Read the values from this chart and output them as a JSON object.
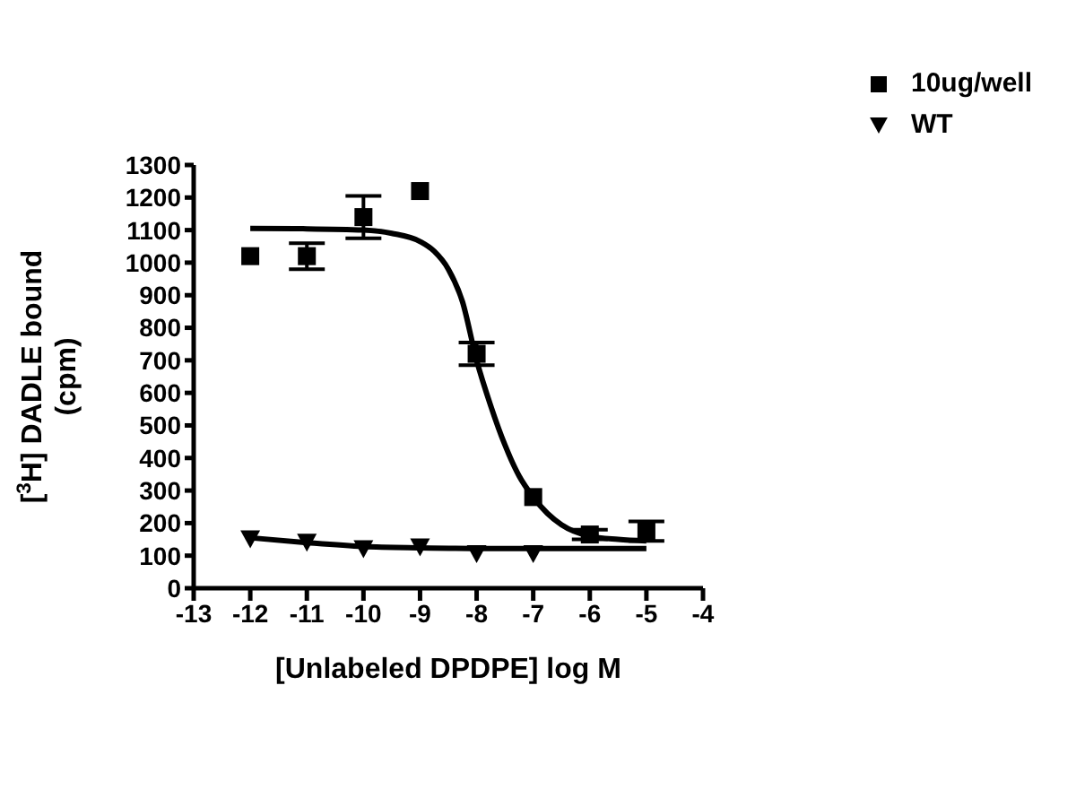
{
  "chart_data": {
    "type": "scatter",
    "xlabel": "[Unlabeled DPDPE] log M",
    "ylabel": "[$^{3}$H] DADLE bound\n(cpm)",
    "xlim": [
      -13,
      -4
    ],
    "xticks": [
      -13,
      -12,
      -11,
      -10,
      -9,
      -8,
      -7,
      -6,
      -5,
      -4
    ],
    "ylim": [
      0,
      1300
    ],
    "yticks": [
      0,
      100,
      200,
      300,
      400,
      500,
      600,
      700,
      800,
      900,
      1000,
      1100,
      1200,
      1300
    ],
    "legend": "top right",
    "series": [
      {
        "name": "10ug/well",
        "marker": "square",
        "color": "#000000",
        "x": [
          -12,
          -11,
          -10,
          -9,
          -8,
          -7,
          -6,
          -5
        ],
        "values": [
          1020,
          1020,
          1140,
          1220,
          720,
          280,
          165,
          175
        ],
        "errors": [
          null,
          40,
          65,
          null,
          35,
          null,
          15,
          30
        ]
      },
      {
        "name": "WT",
        "marker": "triangle",
        "color": "#000000",
        "x": [
          -12,
          -11,
          -10,
          -9,
          -8,
          -7
        ],
        "values": [
          150,
          140,
          120,
          125,
          105,
          105
        ]
      },
      {
        "type": "line",
        "marker": "none",
        "color": "#000000",
        "x": [
          -12,
          -11,
          -10,
          -9.5,
          -9,
          -8.75,
          -8.5,
          -8.25,
          -8,
          -7.75,
          -7.5,
          -7.25,
          -7,
          -6.75,
          -6.5,
          -6,
          -5.5,
          -5
        ],
        "values": [
          1105,
          1104,
          1100,
          1090,
          1065,
          1035,
          980,
          880,
          700,
          560,
          440,
          345,
          280,
          230,
          195,
          160,
          150,
          145
        ]
      },
      {
        "type": "line",
        "marker": "none",
        "color": "#000000",
        "x": [
          -12,
          -11,
          -10,
          -9,
          -8,
          -7,
          -6,
          -5
        ],
        "values": [
          155,
          140,
          128,
          124,
          122,
          122,
          122,
          122
        ]
      }
    ]
  }
}
